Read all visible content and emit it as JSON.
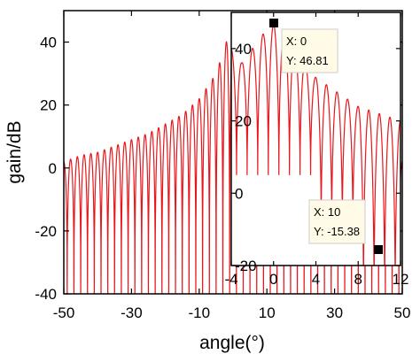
{
  "chart_data": [
    {
      "id": "main",
      "type": "line",
      "xlabel": "angle(°)",
      "ylabel": "gain/dB",
      "xlim": [
        -50,
        50
      ],
      "ylim": [
        -40,
        50
      ],
      "xticks": [
        -50,
        -30,
        -10,
        10,
        30,
        50
      ],
      "yticks": [
        -40,
        -20,
        0,
        20,
        40
      ],
      "grid": false,
      "series": [
        {
          "color": "#e8161b",
          "description_points": {
            "x": [
              -50,
              -45,
              -40,
              -35,
              -30,
              -25,
              -20,
              -15,
              -10,
              -5,
              -2,
              0
            ],
            "peak_y": [
              2,
              4,
              5,
              7,
              9,
              11,
              14,
              17,
              22,
              30,
              40,
              46.81
            ]
          }
        }
      ]
    },
    {
      "id": "inset",
      "type": "line",
      "xlim": [
        -4,
        12
      ],
      "ylim": [
        -20,
        50
      ],
      "xticks": [
        -4,
        0,
        4,
        8,
        12
      ],
      "yticks": [
        -20,
        0,
        20,
        40
      ],
      "grid": false,
      "series": [
        {
          "color": "#e8161b",
          "peaks_x": [
            -4,
            -3,
            -2,
            -1,
            0,
            1,
            2,
            3,
            4,
            5,
            6,
            7,
            8,
            9,
            10,
            11,
            12
          ],
          "peaks_y": [
            40,
            36,
            40,
            44,
            46.81,
            44,
            40,
            36,
            32,
            30,
            28,
            26,
            24,
            23,
            22,
            21,
            20
          ]
        }
      ],
      "datatips": [
        {
          "x": 0,
          "y": 46.81,
          "x_text": "X: 0",
          "y_text": "Y: 46.81"
        },
        {
          "x": 10,
          "y": -15.38,
          "x_text": "X: 10",
          "y_text": "Y: -15.38"
        }
      ]
    }
  ]
}
